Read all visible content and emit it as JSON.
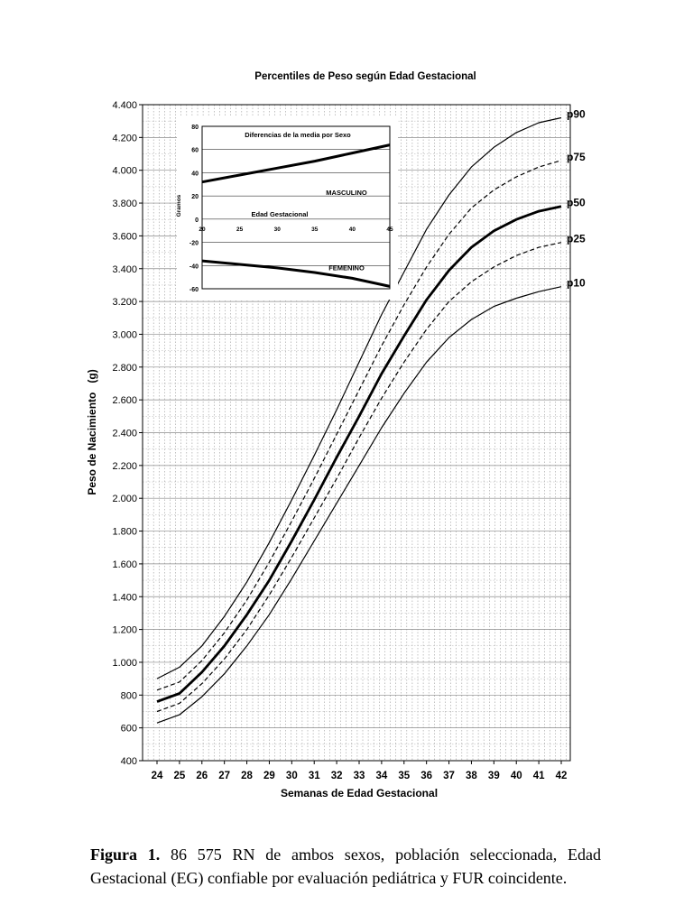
{
  "chart_data": [
    {
      "type": "line",
      "title": "Percentiles de Peso según Edad Gestacional",
      "xlabel": "Semanas de Edad Gestacional",
      "ylabel": "Peso de Nacimiento   (g)",
      "x": [
        24,
        25,
        26,
        27,
        28,
        29,
        30,
        31,
        32,
        33,
        34,
        35,
        36,
        37,
        38,
        39,
        40,
        41,
        42
      ],
      "xlim": [
        24,
        42
      ],
      "ylim": [
        400,
        4400
      ],
      "y_ticks": [
        "400",
        "600",
        "800",
        "1.000",
        "1.200",
        "1.400",
        "1.600",
        "1.800",
        "2.000",
        "2.200",
        "2.400",
        "2.600",
        "2.800",
        "3.000",
        "3.200",
        "3.400",
        "3.600",
        "3.800",
        "4.000",
        "4.200",
        "4.400"
      ],
      "x_ticks": [
        "24",
        "25",
        "26",
        "27",
        "28",
        "29",
        "30",
        "31",
        "32",
        "33",
        "34",
        "35",
        "36",
        "37",
        "38",
        "39",
        "40",
        "41",
        "42"
      ],
      "grid": true,
      "series": [
        {
          "name": "p90",
          "style": "solid-thin",
          "values": [
            900,
            970,
            1100,
            1280,
            1490,
            1730,
            1990,
            2260,
            2540,
            2830,
            3120,
            3380,
            3640,
            3850,
            4020,
            4140,
            4230,
            4290,
            4320
          ]
        },
        {
          "name": "p75",
          "style": "dashed",
          "values": [
            830,
            880,
            1010,
            1180,
            1380,
            1610,
            1860,
            2120,
            2390,
            2660,
            2930,
            3180,
            3410,
            3610,
            3770,
            3880,
            3960,
            4020,
            4060
          ]
        },
        {
          "name": "p50",
          "style": "solid-thick",
          "values": [
            760,
            810,
            940,
            1100,
            1290,
            1500,
            1740,
            1990,
            2250,
            2500,
            2760,
            2990,
            3210,
            3390,
            3530,
            3630,
            3700,
            3750,
            3780
          ]
        },
        {
          "name": "p25",
          "style": "dashed",
          "values": [
            700,
            750,
            870,
            1020,
            1200,
            1410,
            1640,
            1880,
            2120,
            2370,
            2610,
            2830,
            3030,
            3200,
            3320,
            3410,
            3480,
            3530,
            3560
          ]
        },
        {
          "name": "p10",
          "style": "solid-thin",
          "values": [
            630,
            680,
            790,
            930,
            1100,
            1290,
            1510,
            1740,
            1970,
            2200,
            2430,
            2640,
            2830,
            2980,
            3090,
            3170,
            3220,
            3260,
            3290
          ]
        }
      ]
    },
    {
      "type": "line",
      "title": "Diferencias de la media por Sexo",
      "xlabel": "Edad Gestacional",
      "ylabel": "Gramos",
      "x": [
        20,
        25,
        30,
        35,
        40,
        45
      ],
      "xlim": [
        20,
        45
      ],
      "ylim": [
        -60,
        80
      ],
      "y_ticks": [
        "80",
        "60",
        "40",
        "20",
        "0",
        "-20",
        "-40",
        "-60"
      ],
      "x_ticks": [
        "20",
        "25",
        "30",
        "35",
        "40",
        "45"
      ],
      "series": [
        {
          "name": "MASCULINO",
          "values": [
            32,
            38,
            44,
            50,
            57,
            64
          ]
        },
        {
          "name": "FEMENINO",
          "values": [
            -36,
            -39,
            -42,
            -46,
            -51,
            -58
          ]
        }
      ]
    }
  ],
  "caption": {
    "label": "Figura 1.",
    "text": " 86 575 RN de ambos sexos, población seleccionada, Edad Gestacional (EG) confiable por evaluación pediátrica y FUR coincidente."
  }
}
